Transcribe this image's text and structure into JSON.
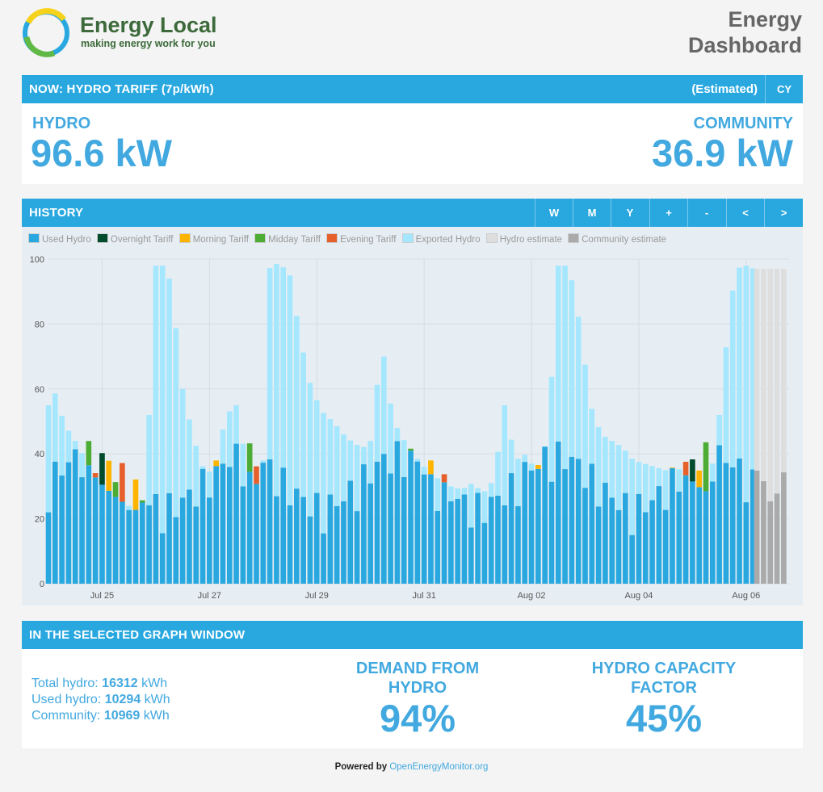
{
  "brand": {
    "name": "Energy Local",
    "tagline": "making energy work for you"
  },
  "page_title": {
    "line1": "Energy",
    "line2": "Dashboard"
  },
  "now_bar": {
    "label": "NOW: HYDRO TARIFF (7p/kWh)",
    "status": "(Estimated)",
    "lang_button": "CY"
  },
  "power": {
    "hydro_label": "HYDRO",
    "hydro_value": "96.6 kW",
    "community_label": "COMMUNITY",
    "community_value": "36.9 kW"
  },
  "history": {
    "title": "HISTORY",
    "buttons": [
      "W",
      "M",
      "Y",
      "+",
      "-",
      "<",
      ">"
    ],
    "legend": [
      {
        "label": "Used Hydro",
        "color": "#29a8e0"
      },
      {
        "label": "Overnight Tariff",
        "color": "#014c2d"
      },
      {
        "label": "Morning Tariff",
        "color": "#ffb401"
      },
      {
        "label": "Midday Tariff",
        "color": "#4dac34"
      },
      {
        "label": "Evening Tariff",
        "color": "#e6602b"
      },
      {
        "label": "Exported Hydro",
        "color": "#a5e7ff"
      },
      {
        "label": "Hydro estimate",
        "color": "#dedede"
      },
      {
        "label": "Community estimate",
        "color": "#aaaaaa"
      }
    ]
  },
  "chart_data": {
    "type": "bar",
    "stacked": true,
    "xlabel": "",
    "ylabel": "",
    "ylim": [
      0,
      100
    ],
    "yticks": [
      0,
      20,
      40,
      60,
      80,
      100
    ],
    "xticks": [
      "Jul 25",
      "Jul 27",
      "Jul 29",
      "Jul 31",
      "Aug 02",
      "Aug 04",
      "Aug 06"
    ],
    "grid": true,
    "legend_position": "top-left",
    "interval": "half-hourly",
    "series": [
      {
        "name": "Used Hydro",
        "color": "#29a8e0"
      },
      {
        "name": "Exported Hydro",
        "color": "#a5e7ff"
      },
      {
        "name": "Overnight Tariff",
        "color": "#014c2d"
      },
      {
        "name": "Morning Tariff",
        "color": "#ffb401"
      },
      {
        "name": "Midday Tariff",
        "color": "#4dac34"
      },
      {
        "name": "Evening Tariff",
        "color": "#e6602b"
      },
      {
        "name": "Hydro estimate",
        "color": "#dedede"
      },
      {
        "name": "Community estimate",
        "color": "#aaaaaa"
      }
    ],
    "hydro_total_profile": [
      {
        "x": 0,
        "y": 55
      },
      {
        "x": 0.2,
        "y": 60
      },
      {
        "x": 0.6,
        "y": 49
      },
      {
        "x": 1.0,
        "y": 44
      },
      {
        "x": 1.4,
        "y": 38
      },
      {
        "x": 1.8,
        "y": 32
      },
      {
        "x": 2.2,
        "y": 29
      },
      {
        "x": 2.6,
        "y": 26
      },
      {
        "x": 3.0,
        "y": 24
      },
      {
        "x": 3.4,
        "y": 22
      },
      {
        "x": 3.6,
        "y": 28
      },
      {
        "x": 3.8,
        "y": 60
      },
      {
        "x": 4.0,
        "y": 98
      },
      {
        "x": 4.4,
        "y": 98
      },
      {
        "x": 4.6,
        "y": 90
      },
      {
        "x": 5.0,
        "y": 60
      },
      {
        "x": 5.4,
        "y": 45
      },
      {
        "x": 5.8,
        "y": 35
      },
      {
        "x": 6.2,
        "y": 34
      },
      {
        "x": 6.6,
        "y": 52
      },
      {
        "x": 7.0,
        "y": 55
      },
      {
        "x": 7.4,
        "y": 36
      },
      {
        "x": 7.8,
        "y": 30
      },
      {
        "x": 8.0,
        "y": 38
      },
      {
        "x": 8.2,
        "y": 97
      },
      {
        "x": 8.6,
        "y": 99
      },
      {
        "x": 9.0,
        "y": 95
      },
      {
        "x": 9.4,
        "y": 75
      },
      {
        "x": 9.8,
        "y": 60
      },
      {
        "x": 10.2,
        "y": 53
      },
      {
        "x": 10.6,
        "y": 50
      },
      {
        "x": 11.0,
        "y": 46
      },
      {
        "x": 11.4,
        "y": 43
      },
      {
        "x": 11.8,
        "y": 42
      },
      {
        "x": 12.0,
        "y": 44
      },
      {
        "x": 12.2,
        "y": 55
      },
      {
        "x": 12.4,
        "y": 80
      },
      {
        "x": 12.6,
        "y": 60
      },
      {
        "x": 13.0,
        "y": 48
      },
      {
        "x": 13.4,
        "y": 42
      },
      {
        "x": 13.8,
        "y": 38
      },
      {
        "x": 14.2,
        "y": 34
      },
      {
        "x": 14.6,
        "y": 32
      },
      {
        "x": 15.0,
        "y": 30
      },
      {
        "x": 15.4,
        "y": 29
      },
      {
        "x": 15.8,
        "y": 31
      },
      {
        "x": 16.2,
        "y": 28
      },
      {
        "x": 16.6,
        "y": 32
      },
      {
        "x": 17.0,
        "y": 55
      },
      {
        "x": 17.4,
        "y": 38
      },
      {
        "x": 17.8,
        "y": 40
      },
      {
        "x": 18.2,
        "y": 34
      },
      {
        "x": 18.6,
        "y": 45
      },
      {
        "x": 18.8,
        "y": 70
      },
      {
        "x": 19.0,
        "y": 98
      },
      {
        "x": 19.4,
        "y": 98
      },
      {
        "x": 19.8,
        "y": 80
      },
      {
        "x": 20.2,
        "y": 55
      },
      {
        "x": 20.6,
        "y": 46
      },
      {
        "x": 21.0,
        "y": 44
      },
      {
        "x": 21.4,
        "y": 42
      },
      {
        "x": 21.8,
        "y": 38
      },
      {
        "x": 22.2,
        "y": 37
      },
      {
        "x": 22.6,
        "y": 36
      },
      {
        "x": 23.0,
        "y": 35
      },
      {
        "x": 23.4,
        "y": 36
      },
      {
        "x": 23.8,
        "y": 33
      },
      {
        "x": 24.2,
        "y": 30
      },
      {
        "x": 24.6,
        "y": 28
      },
      {
        "x": 24.8,
        "y": 40
      },
      {
        "x": 25.0,
        "y": 52
      },
      {
        "x": 25.3,
        "y": 77
      },
      {
        "x": 25.6,
        "y": 97
      },
      {
        "x": 26.0,
        "y": 98
      },
      {
        "x": 26.3,
        "y": 97
      }
    ],
    "estimates": {
      "hydro": 97,
      "community": 30,
      "from_day": 26.4,
      "to_day": 27.6
    }
  },
  "summary": {
    "title": "IN THE SELECTED GRAPH WINDOW",
    "total_hydro_label": "Total hydro:",
    "total_hydro_value": "16312",
    "total_hydro_unit": "kWh",
    "used_hydro_label": "Used hydro:",
    "used_hydro_value": "10294",
    "used_hydro_unit": "kWh",
    "community_label": "Community:",
    "community_value": "10969",
    "community_unit": "kWh",
    "demand_label_1": "DEMAND FROM",
    "demand_label_2": "HYDRO",
    "demand_value": "94%",
    "capacity_label_1": "HYDRO CAPACITY",
    "capacity_label_2": "FACTOR",
    "capacity_value": "45%"
  },
  "footer": {
    "prefix": "Powered by",
    "link": "OpenEnergyMonitor.org"
  }
}
